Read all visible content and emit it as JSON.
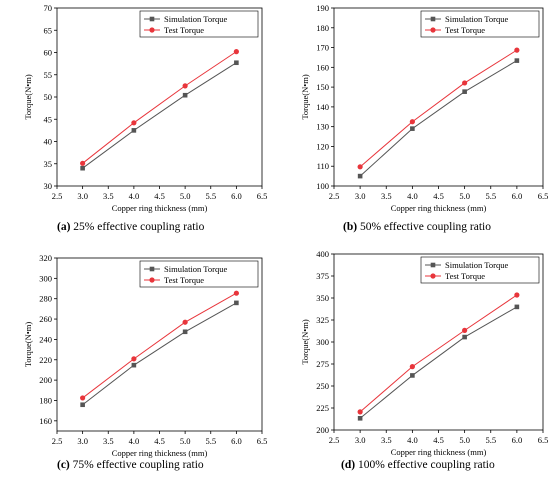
{
  "chart_data": [
    {
      "type": "line",
      "caption_tag": "(a)",
      "caption_text": " 25% effective coupling ratio",
      "xlabel": "Copper ring thickness (mm)",
      "ylabel": "Torque(N•m)",
      "xlim": [
        2.5,
        6.5
      ],
      "ylim": [
        30,
        70
      ],
      "xticks": [
        "2.5",
        "3.0",
        "3.5",
        "4.0",
        "4.5",
        "5.0",
        "5.5",
        "6.0",
        "6.5"
      ],
      "yticks": [
        "30",
        "35",
        "40",
        "45",
        "50",
        "55",
        "60",
        "65",
        "70"
      ],
      "legend_position": "top-right",
      "grid": false,
      "x": [
        3.0,
        4.0,
        5.0,
        6.0
      ],
      "series": [
        {
          "name": "Simulation Torque",
          "values": [
            34.0,
            42.5,
            50.4,
            57.7
          ],
          "color": "#555555",
          "marker": "square"
        },
        {
          "name": "Test Torque",
          "values": [
            35.1,
            44.2,
            52.5,
            60.2
          ],
          "color": "#e8353b",
          "marker": "circle"
        }
      ]
    },
    {
      "type": "line",
      "caption_tag": "(b)",
      "caption_text": " 50% effective coupling ratio",
      "xlabel": "Copper ring thickness (mm)",
      "ylabel": "Torque(N•m)",
      "xlim": [
        2.5,
        6.5
      ],
      "ylim": [
        100,
        190
      ],
      "xticks": [
        "2.5",
        "3.0",
        "3.5",
        "4.0",
        "4.5",
        "5.0",
        "5.5",
        "6.0",
        "6.5"
      ],
      "yticks": [
        "100",
        "110",
        "120",
        "130",
        "140",
        "150",
        "160",
        "170",
        "180",
        "190"
      ],
      "legend_position": "top-right",
      "grid": false,
      "x": [
        3.0,
        4.0,
        5.0,
        6.0
      ],
      "series": [
        {
          "name": "Simulation Torque",
          "values": [
            105.0,
            129.0,
            147.7,
            163.4
          ],
          "color": "#555555",
          "marker": "square"
        },
        {
          "name": "Test Torque",
          "values": [
            109.7,
            132.5,
            152.1,
            168.7
          ],
          "color": "#e8353b",
          "marker": "circle"
        }
      ]
    },
    {
      "type": "line",
      "caption_tag": "(c)",
      "caption_text": " 75% effective coupling ratio",
      "xlabel": "Copper ring thickness (mm)",
      "ylabel": "Torque(N•m)",
      "xlim": [
        2.5,
        6.5
      ],
      "ylim": [
        150,
        320
      ],
      "xticks": [
        "2.5",
        "3.0",
        "3.5",
        "4.0",
        "4.5",
        "5.0",
        "5.5",
        "6.0",
        "6.5"
      ],
      "yticks": [
        "160",
        "180",
        "200",
        "220",
        "240",
        "260",
        "280",
        "300",
        "320"
      ],
      "legend_position": "top-right",
      "grid": false,
      "x": [
        3.0,
        4.0,
        5.0,
        6.0
      ],
      "series": [
        {
          "name": "Simulation Torque",
          "values": [
            175.8,
            214.7,
            247.5,
            275.9
          ],
          "color": "#555555",
          "marker": "square"
        },
        {
          "name": "Test Torque",
          "values": [
            182.5,
            220.9,
            256.9,
            285.4
          ],
          "color": "#e8353b",
          "marker": "circle"
        }
      ]
    },
    {
      "type": "line",
      "caption_tag": "(d)",
      "caption_text": " 100% effective coupling ratio",
      "xlabel": "Copper ring  thickness (mm)",
      "ylabel": "Torque(N•m)",
      "xlim": [
        2.5,
        6.5
      ],
      "ylim": [
        200,
        400
      ],
      "xticks": [
        "2.5",
        "3.0",
        "3.5",
        "4.0",
        "4.5",
        "5.0",
        "5.5",
        "6.0",
        "6.5"
      ],
      "yticks": [
        "200",
        "225",
        "250",
        "275",
        "300",
        "325",
        "350",
        "375",
        "400"
      ],
      "legend_position": "top-right",
      "grid": false,
      "x": [
        3.0,
        4.0,
        5.0,
        6.0
      ],
      "series": [
        {
          "name": "Simulation Torque",
          "values": [
            213.3,
            262.0,
            305.6,
            339.9
          ],
          "color": "#555555",
          "marker": "square"
        },
        {
          "name": "Test Torque",
          "values": [
            220.6,
            272.0,
            313.2,
            353.4
          ],
          "color": "#e8353b",
          "marker": "circle"
        }
      ]
    }
  ]
}
